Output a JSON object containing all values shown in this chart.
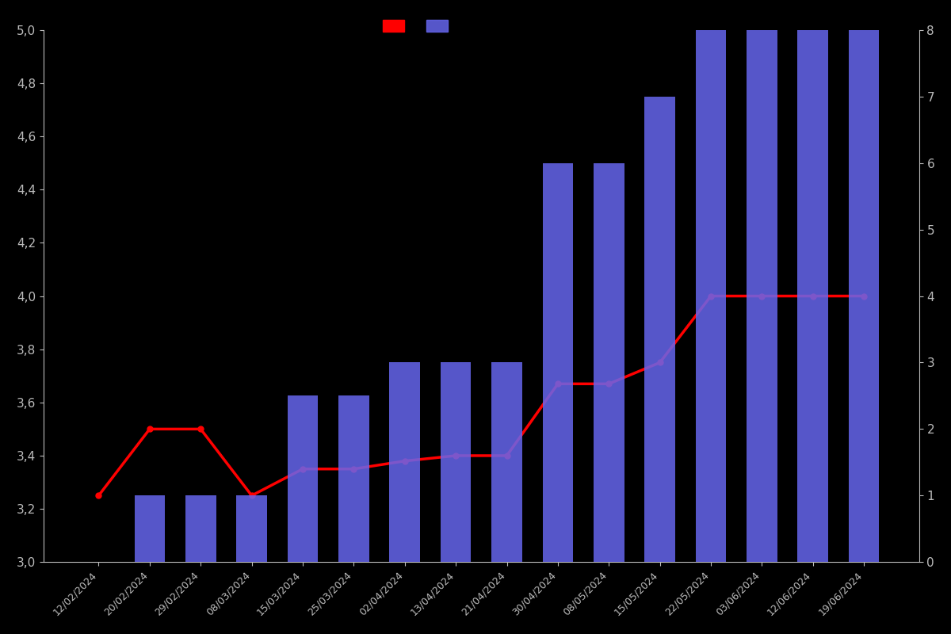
{
  "dates": [
    "12/02/2024",
    "20/02/2024",
    "29/02/2024",
    "08/03/2024",
    "15/03/2024",
    "25/03/2024",
    "02/04/2024",
    "13/04/2024",
    "21/04/2024",
    "30/04/2024",
    "08/05/2024",
    "15/05/2024",
    "22/05/2024",
    "03/06/2024",
    "12/06/2024",
    "19/06/2024"
  ],
  "bar_heights": [
    0,
    1,
    1,
    1,
    2.5,
    2.5,
    3,
    3,
    3,
    6,
    6,
    7,
    8,
    8,
    8,
    8
  ],
  "line_values": [
    3.25,
    3.5,
    3.5,
    3.25,
    3.35,
    3.35,
    3.38,
    3.4,
    3.4,
    3.67,
    3.67,
    3.75,
    4.0,
    4.0,
    4.0,
    4.0
  ],
  "bar_color": "#6666ee",
  "line_color": "#ff0000",
  "background_color": "#000000",
  "text_color": "#bbbbbb",
  "left_ylim": [
    3.0,
    5.0
  ],
  "right_ylim": [
    0,
    8
  ],
  "left_yticks": [
    3.0,
    3.2,
    3.4,
    3.6,
    3.8,
    4.0,
    4.2,
    4.4,
    4.6,
    4.8,
    5.0
  ],
  "right_yticks": [
    0,
    1,
    2,
    3,
    4,
    5,
    6,
    7,
    8
  ],
  "figsize": [
    12.0,
    8.0
  ],
  "dpi": 100
}
